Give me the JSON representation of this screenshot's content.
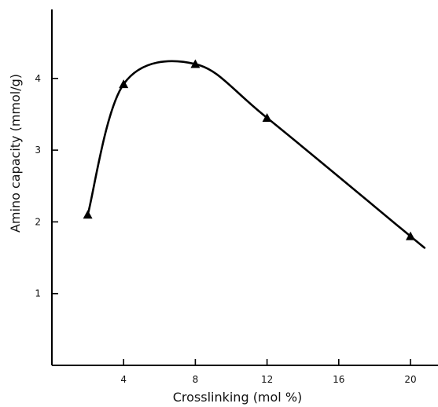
{
  "chart_data": {
    "type": "line",
    "xlabel": "Crosslinking (mol %)",
    "ylabel": "Amino capacity (mmol/g)",
    "xlim": [
      0,
      21
    ],
    "ylim": [
      0,
      5
    ],
    "x_ticks": [
      4,
      8,
      12,
      16,
      20
    ],
    "y_ticks": [
      1,
      2,
      3,
      4
    ],
    "grid": false,
    "series": [
      {
        "marker": "triangle",
        "x": [
          2,
          4,
          8,
          12,
          20
        ],
        "y": [
          2.1,
          3.92,
          4.2,
          3.45,
          1.8
        ]
      }
    ]
  }
}
